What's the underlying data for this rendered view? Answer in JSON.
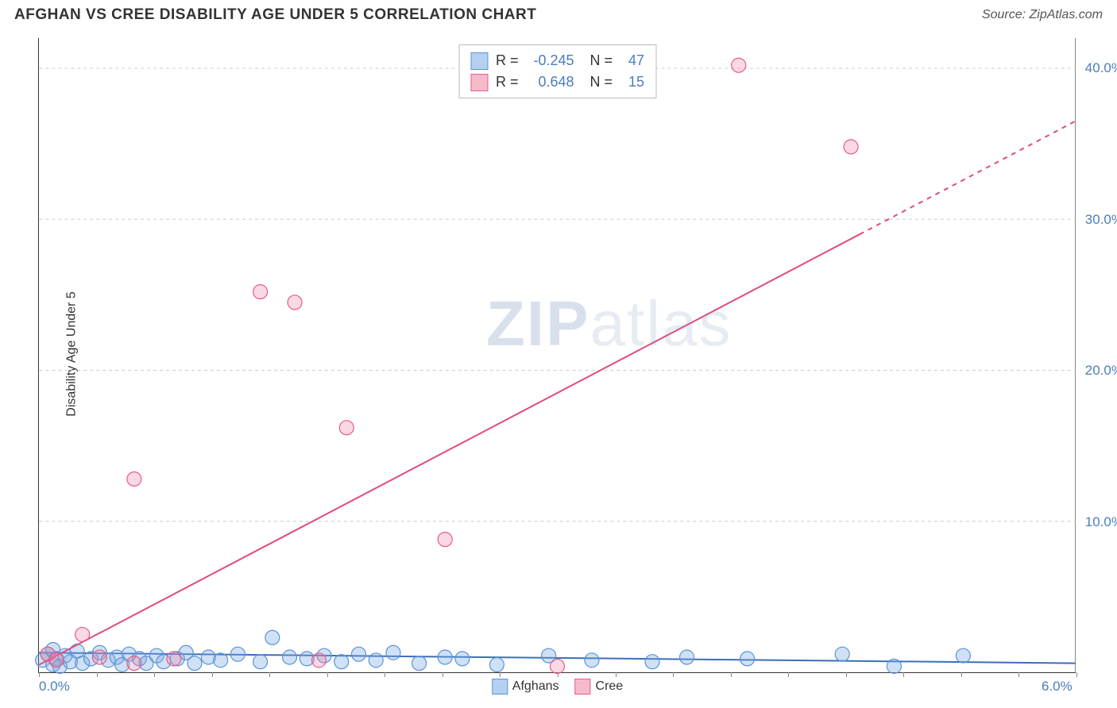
{
  "title": "AFGHAN VS CREE DISABILITY AGE UNDER 5 CORRELATION CHART",
  "source": "Source: ZipAtlas.com",
  "ylabel": "Disability Age Under 5",
  "watermark_a": "ZIP",
  "watermark_b": "atlas",
  "chart": {
    "type": "scatter",
    "background": "#ffffff",
    "grid_color": "#cccccc",
    "grid_dash": "4 4",
    "axis_color": "#333333",
    "tick_font_color": "#4a7ebb",
    "tick_fontsize": 17,
    "x": {
      "min": 0.0,
      "max": 6.0,
      "ticks": [
        0.0,
        6.0
      ],
      "labels": [
        "0.0%",
        "6.0%"
      ]
    },
    "y": {
      "min": 0.0,
      "max": 42.0,
      "ticks": [
        10.0,
        20.0,
        30.0,
        40.0
      ],
      "labels": [
        "10.0%",
        "20.0%",
        "30.0%",
        "40.0%"
      ]
    },
    "marker_radius": 9,
    "marker_stroke_width": 1.2,
    "line_width": 2,
    "series": [
      {
        "name": "Afghans",
        "color_fill": "rgba(120,170,230,0.35)",
        "color_stroke": "#5a93d6",
        "line_color": "#3b6fb5",
        "R": "-0.245",
        "N": "47",
        "trend": {
          "x1": 0.0,
          "y1": 1.3,
          "x2": 6.0,
          "y2": 0.6,
          "dash_after_x": null
        },
        "points": [
          [
            0.02,
            0.8
          ],
          [
            0.05,
            1.2
          ],
          [
            0.08,
            0.5
          ],
          [
            0.08,
            1.5
          ],
          [
            0.1,
            0.9
          ],
          [
            0.12,
            0.4
          ],
          [
            0.15,
            1.1
          ],
          [
            0.18,
            0.7
          ],
          [
            0.22,
            1.4
          ],
          [
            0.25,
            0.6
          ],
          [
            0.3,
            0.9
          ],
          [
            0.35,
            1.3
          ],
          [
            0.4,
            0.8
          ],
          [
            0.45,
            1.0
          ],
          [
            0.48,
            0.5
          ],
          [
            0.52,
            1.2
          ],
          [
            0.58,
            0.9
          ],
          [
            0.62,
            0.6
          ],
          [
            0.68,
            1.1
          ],
          [
            0.72,
            0.7
          ],
          [
            0.8,
            0.9
          ],
          [
            0.85,
            1.3
          ],
          [
            0.9,
            0.6
          ],
          [
            0.98,
            1.0
          ],
          [
            1.05,
            0.8
          ],
          [
            1.15,
            1.2
          ],
          [
            1.28,
            0.7
          ],
          [
            1.35,
            2.3
          ],
          [
            1.45,
            1.0
          ],
          [
            1.55,
            0.9
          ],
          [
            1.65,
            1.1
          ],
          [
            1.75,
            0.7
          ],
          [
            1.85,
            1.2
          ],
          [
            1.95,
            0.8
          ],
          [
            2.05,
            1.3
          ],
          [
            2.2,
            0.6
          ],
          [
            2.35,
            1.0
          ],
          [
            2.45,
            0.9
          ],
          [
            2.65,
            0.5
          ],
          [
            2.95,
            1.1
          ],
          [
            3.2,
            0.8
          ],
          [
            3.55,
            0.7
          ],
          [
            3.75,
            1.0
          ],
          [
            4.1,
            0.9
          ],
          [
            4.65,
            1.2
          ],
          [
            4.95,
            0.4
          ],
          [
            5.35,
            1.1
          ]
        ]
      },
      {
        "name": "Cree",
        "color_fill": "rgba(240,130,160,0.30)",
        "color_stroke": "#e75a8a",
        "line_color": "#e14b7e",
        "R": "0.648",
        "N": "15",
        "trend": {
          "x1": 0.0,
          "y1": 0.5,
          "x2": 6.0,
          "y2": 36.5,
          "dash_after_x": 4.75
        },
        "points": [
          [
            0.05,
            1.2
          ],
          [
            0.1,
            0.8
          ],
          [
            0.25,
            2.5
          ],
          [
            0.35,
            1.0
          ],
          [
            0.55,
            0.6
          ],
          [
            0.55,
            12.8
          ],
          [
            0.78,
            0.9
          ],
          [
            1.28,
            25.2
          ],
          [
            1.48,
            24.5
          ],
          [
            1.62,
            0.8
          ],
          [
            1.78,
            16.2
          ],
          [
            2.35,
            8.8
          ],
          [
            3.0,
            0.4
          ],
          [
            4.05,
            40.2
          ],
          [
            4.7,
            34.8
          ]
        ]
      }
    ]
  },
  "legend_top": {
    "rows": [
      {
        "swatch_fill": "rgba(120,170,230,0.55)",
        "swatch_border": "#5a93d6",
        "r_label": "R =",
        "r_val": "-0.245",
        "n_label": "N =",
        "n_val": "47"
      },
      {
        "swatch_fill": "rgba(240,130,160,0.55)",
        "swatch_border": "#e75a8a",
        "r_label": "R =",
        "r_val": "0.648",
        "n_label": "N =",
        "n_val": "15"
      }
    ]
  },
  "legend_bottom": {
    "items": [
      {
        "swatch_fill": "rgba(120,170,230,0.55)",
        "swatch_border": "#5a93d6",
        "label": "Afghans"
      },
      {
        "swatch_fill": "rgba(240,130,160,0.55)",
        "swatch_border": "#e75a8a",
        "label": "Cree"
      }
    ]
  }
}
